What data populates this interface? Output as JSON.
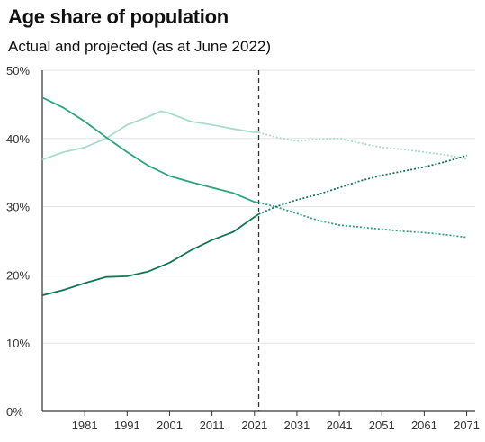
{
  "chart_data": {
    "type": "line",
    "title": "Age share of population",
    "subtitle": "Actual and projected (as at June 2022)",
    "xlim": [
      1971,
      2073
    ],
    "ylim": [
      0,
      50
    ],
    "x_ticks": [
      1981,
      1991,
      2001,
      2011,
      2021,
      2031,
      2041,
      2051,
      2061,
      2071
    ],
    "y_ticks": [
      0,
      10,
      20,
      30,
      40,
      50
    ],
    "y_tick_labels": [
      "0%",
      "10%",
      "20%",
      "30%",
      "40%",
      "50%"
    ],
    "projection_start": 2022,
    "grid": true,
    "legend": "none",
    "series": [
      {
        "color": "#a8dcc8",
        "x": [
          1971,
          1976,
          1981,
          1986,
          1991,
          1996,
          1999,
          2001,
          2006,
          2011,
          2016,
          2021,
          2022,
          2026,
          2031,
          2036,
          2041,
          2046,
          2051,
          2056,
          2061,
          2066,
          2071
        ],
        "values": [
          36.9,
          38.0,
          38.7,
          40.0,
          42.0,
          43.2,
          44.0,
          43.7,
          42.5,
          42.0,
          41.4,
          40.9,
          40.9,
          40.2,
          39.6,
          39.9,
          40.0,
          39.3,
          38.7,
          38.4,
          38.0,
          37.6,
          37.0
        ]
      },
      {
        "color": "#2aa57a",
        "x": [
          1971,
          1976,
          1981,
          1986,
          1991,
          1996,
          2001,
          2006,
          2011,
          2016,
          2021,
          2022,
          2026,
          2031,
          2036,
          2041,
          2046,
          2051,
          2056,
          2061,
          2066,
          2071
        ],
        "values": [
          46.0,
          44.5,
          42.5,
          40.2,
          38.0,
          36.0,
          34.5,
          33.6,
          32.8,
          32.0,
          30.7,
          30.6,
          30.0,
          29.0,
          28.0,
          27.3,
          27.0,
          26.7,
          26.4,
          26.2,
          25.9,
          25.5
        ]
      },
      {
        "color": "#127553",
        "x": [
          1971,
          1976,
          1981,
          1986,
          1991,
          1996,
          2001,
          2006,
          2011,
          2016,
          2021,
          2022,
          2026,
          2031,
          2036,
          2041,
          2046,
          2051,
          2056,
          2061,
          2066,
          2071
        ],
        "values": [
          17.0,
          17.8,
          18.8,
          19.7,
          19.8,
          20.5,
          21.8,
          23.6,
          25.1,
          26.3,
          28.5,
          28.9,
          30.0,
          31.0,
          31.8,
          32.8,
          33.8,
          34.6,
          35.2,
          35.8,
          36.6,
          37.5
        ]
      }
    ]
  }
}
